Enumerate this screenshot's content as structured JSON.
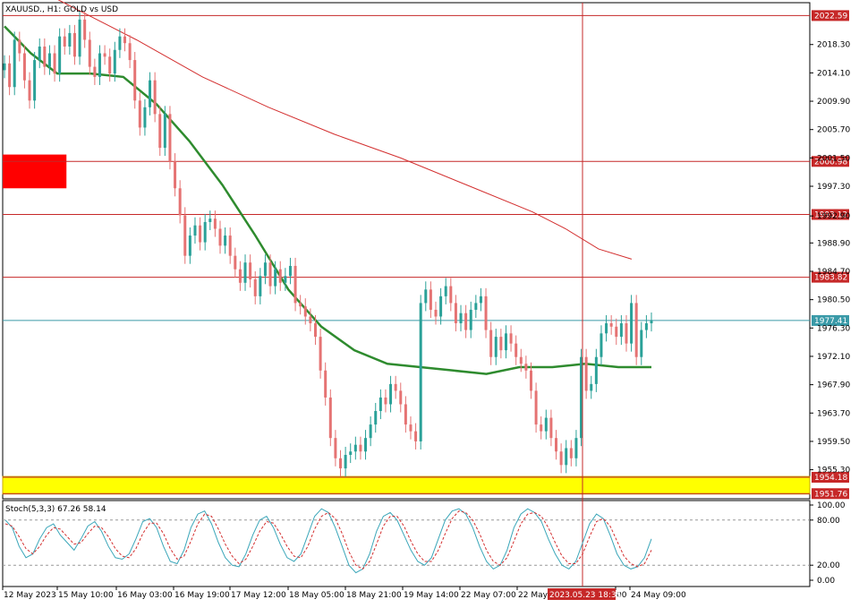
{
  "chart_header": "XAUUSD., H1:  GOLD vs USD",
  "chart_data": {
    "type": "candlestick",
    "symbol": "XAUUSD.",
    "timeframe": "H1",
    "description": "GOLD vs USD",
    "price_range": [
      1951.0,
      2024.5
    ],
    "price_ticks": [
      "2018.30",
      "2014.10",
      "2009.90",
      "2005.70",
      "2001.50",
      "1997.30",
      "1992.90",
      "1988.90",
      "1984.70",
      "1980.50",
      "1976.30",
      "1972.10",
      "1967.90",
      "1963.70",
      "1959.50",
      "1955.30"
    ],
    "price_tick_values": [
      2018.3,
      2014.1,
      2009.9,
      2005.7,
      2001.5,
      1997.3,
      1992.9,
      1988.9,
      1984.7,
      1980.5,
      1976.3,
      1972.1,
      1967.9,
      1963.7,
      1959.5,
      1955.3
    ],
    "time_labels": [
      "12 May 2023",
      "15 May 10:00",
      "16 May 03:00",
      "16 May 19:00",
      "17 May 12:00",
      "18 May 05:00",
      "18 May 21:00",
      "19 May 14:00",
      "22 May 07:00",
      "22 May",
      "00",
      "24 May 09:00"
    ],
    "crosshair_time_label": "2023.05.23 18:35",
    "horizontal_levels": [
      {
        "price": 2022.59,
        "label": "2022.59",
        "color": "#c62828"
      },
      {
        "price": 2000.98,
        "label": "2000.98",
        "color": "#c62828"
      },
      {
        "price": 1993.12,
        "label": "1993.12",
        "color": "#c62828"
      },
      {
        "price": 1983.82,
        "label": "1983.82",
        "color": "#c62828"
      },
      {
        "price": 1977.41,
        "label": "1977.41",
        "color": "#3a9aa8"
      },
      {
        "price": 1954.18,
        "label": "1954.18",
        "color": "#c62828"
      },
      {
        "price": 1951.76,
        "label": "1951.76",
        "color": "#c62828"
      }
    ],
    "zones": [
      {
        "name": "resistance",
        "price_top": 2002.0,
        "price_bottom": 1997.0,
        "bars": [
          0,
          12
        ],
        "color": "#ff0000"
      },
      {
        "name": "support",
        "price_top": 1954.3,
        "price_bottom": 1951.7,
        "bars": [
          0,
          124
        ],
        "color": "#ffff00"
      }
    ],
    "crosshair_bar": 86,
    "close_series": [
      2015.5,
      2012.0,
      2019.0,
      2017.0,
      2013.0,
      2010.0,
      2016.0,
      2018.0,
      2015.0,
      2017.0,
      2014.0,
      2019.5,
      2018.0,
      2020.0,
      2016.5,
      2022.0,
      2019.0,
      2015.0,
      2013.5,
      2017.0,
      2016.5,
      2014.0,
      2017.5,
      2019.5,
      2018.5,
      2016.0,
      2010.0,
      2006.0,
      2009.0,
      2013.0,
      2008.0,
      2003.0,
      2008.0,
      2001.0,
      1997.0,
      1993.0,
      1987.0,
      1990.0,
      1991.5,
      1989.0,
      1992.0,
      1992.5,
      1991.0,
      1988.5,
      1990.0,
      1987.0,
      1985.0,
      1983.0,
      1986.0,
      1983.5,
      1981.0,
      1984.0,
      1986.0,
      1982.5,
      1985.0,
      1983.0,
      1984.0,
      1985.5,
      1980.0,
      1979.5,
      1978.0,
      1977.0,
      1975.0,
      1970.0,
      1966.0,
      1960.0,
      1957.0,
      1955.5,
      1957.5,
      1958.0,
      1959.0,
      1958.0,
      1960.0,
      1962.0,
      1964.0,
      1966.0,
      1965.0,
      1968.0,
      1967.0,
      1965.0,
      1962.0,
      1961.0,
      1959.5,
      1980.0,
      1982.0,
      1979.0,
      1978.0,
      1981.0,
      1982.5,
      1980.0,
      1977.0,
      1978.5,
      1976.0,
      1979.0,
      1980.0,
      1981.0,
      1976.0,
      1972.0,
      1975.0,
      1973.0,
      1975.5,
      1974.0,
      1972.0,
      1971.0,
      1970.0,
      1967.0,
      1962.0,
      1961.0,
      1963.0,
      1960.0,
      1958.0,
      1956.0,
      1958.5,
      1957.0,
      1960.0,
      1972.0,
      1967.0,
      1968.0,
      1972.0,
      1975.5,
      1977.0,
      1976.5,
      1975.0,
      1977.0,
      1974.0,
      1980.0,
      1972.0,
      1976.0,
      1977.0,
      1977.4
    ],
    "ma_fast": [
      {
        "bar": 0,
        "price": 2021.0
      },
      {
        "bar": 8,
        "price": 2017.0
      },
      {
        "bar": 16,
        "price": 2014.0
      },
      {
        "bar": 26,
        "price": 2014.0
      },
      {
        "bar": 36,
        "price": 2013.5
      },
      {
        "bar": 46,
        "price": 2009.5
      },
      {
        "bar": 56,
        "price": 2004.0
      },
      {
        "bar": 66,
        "price": 1997.5
      },
      {
        "bar": 76,
        "price": 1990.0
      },
      {
        "bar": 86,
        "price": 1982.0
      },
      {
        "bar": 96,
        "price": 1976.5
      },
      {
        "bar": 106,
        "price": 1973.0
      },
      {
        "bar": 116,
        "price": 1971.0
      },
      {
        "bar": 126,
        "price": 1970.5
      },
      {
        "bar": 136,
        "price": 1970.0
      },
      {
        "bar": 146,
        "price": 1969.5
      },
      {
        "bar": 156,
        "price": 1970.5
      },
      {
        "bar": 166,
        "price": 1970.5
      },
      {
        "bar": 176,
        "price": 1971.0
      },
      {
        "bar": 186,
        "price": 1970.5
      },
      {
        "bar": 196,
        "price": 1970.5
      }
    ],
    "ma_slow": [
      {
        "bar": 0,
        "price": 2029.0
      },
      {
        "bar": 20,
        "price": 2024.0
      },
      {
        "bar": 40,
        "price": 2019.0
      },
      {
        "bar": 60,
        "price": 2013.5
      },
      {
        "bar": 80,
        "price": 2009.0
      },
      {
        "bar": 100,
        "price": 2005.0
      },
      {
        "bar": 120,
        "price": 2001.5
      },
      {
        "bar": 140,
        "price": 1997.5
      },
      {
        "bar": 160,
        "price": 1993.5
      },
      {
        "bar": 170,
        "price": 1991.0
      },
      {
        "bar": 180,
        "price": 1988.0
      },
      {
        "bar": 190,
        "price": 1986.5
      }
    ],
    "stochastic": {
      "label": "Stoch(5,3,3) 67.26 58.14",
      "k": 67.26,
      "d": 58.14,
      "scale_ticks": [
        "100.00",
        "80.00",
        "20.00",
        "0.00"
      ],
      "scale_tick_values": [
        100,
        80,
        20,
        0
      ],
      "k_series": [
        80,
        70,
        45,
        30,
        35,
        55,
        70,
        75,
        60,
        50,
        40,
        55,
        72,
        78,
        65,
        45,
        30,
        28,
        35,
        55,
        78,
        82,
        70,
        45,
        25,
        22,
        40,
        70,
        88,
        92,
        75,
        50,
        30,
        20,
        18,
        35,
        60,
        80,
        85,
        70,
        48,
        30,
        25,
        35,
        60,
        85,
        95,
        90,
        70,
        45,
        20,
        10,
        15,
        35,
        65,
        85,
        90,
        80,
        60,
        40,
        25,
        20,
        30,
        55,
        80,
        92,
        95,
        88,
        70,
        45,
        25,
        15,
        20,
        40,
        70,
        88,
        95,
        90,
        78,
        55,
        35,
        20,
        15,
        25,
        50,
        75,
        88,
        82,
        60,
        35,
        20,
        15,
        18,
        30,
        55
      ],
      "d_series": [
        75,
        72,
        58,
        42,
        35,
        45,
        60,
        70,
        68,
        58,
        48,
        50,
        62,
        72,
        70,
        58,
        42,
        32,
        30,
        42,
        62,
        76,
        76,
        62,
        42,
        28,
        32,
        52,
        75,
        88,
        85,
        68,
        48,
        32,
        22,
        28,
        45,
        65,
        78,
        76,
        62,
        45,
        32,
        30,
        45,
        68,
        85,
        90,
        82,
        62,
        38,
        20,
        15,
        25,
        48,
        72,
        85,
        85,
        72,
        52,
        35,
        25,
        25,
        40,
        62,
        82,
        92,
        90,
        80,
        62,
        40,
        25,
        20,
        30,
        52,
        75,
        88,
        90,
        85,
        70,
        50,
        32,
        22,
        22,
        35,
        58,
        78,
        82,
        72,
        52,
        32,
        22,
        18,
        22,
        40
      ]
    }
  }
}
